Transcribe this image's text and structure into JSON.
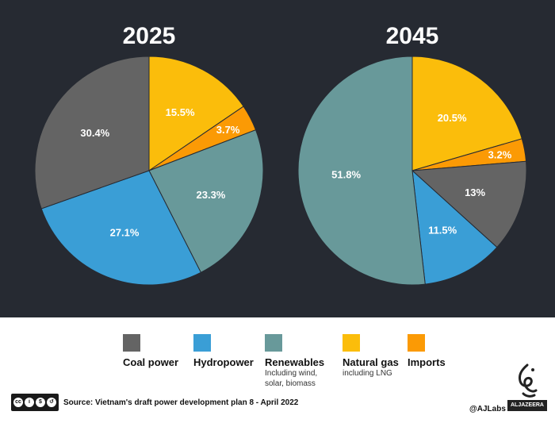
{
  "chart_data": [
    {
      "type": "pie",
      "title": "2025",
      "slices": [
        {
          "category": "Natural gas",
          "value": 15.5,
          "label": "15.5%"
        },
        {
          "category": "Imports",
          "value": 3.7,
          "label": "3.7%"
        },
        {
          "category": "Renewables",
          "value": 23.3,
          "label": "23.3%"
        },
        {
          "category": "Hydropower",
          "value": 27.1,
          "label": "27.1%"
        },
        {
          "category": "Coal power",
          "value": 30.4,
          "label": "30.4%"
        }
      ]
    },
    {
      "type": "pie",
      "title": "2045",
      "slices": [
        {
          "category": "Natural gas",
          "value": 20.5,
          "label": "20.5%"
        },
        {
          "category": "Imports",
          "value": 3.2,
          "label": "3.2%"
        },
        {
          "category": "Coal power",
          "value": 13,
          "label": "13%"
        },
        {
          "category": "Hydropower",
          "value": 11.5,
          "label": "11.5%"
        },
        {
          "category": "Renewables",
          "value": 51.8,
          "label": "51.8%"
        }
      ]
    }
  ],
  "colors": {
    "Coal power": "#646464",
    "Hydropower": "#3a9ed6",
    "Renewables": "#68999a",
    "Natural gas": "#fbbd0b",
    "Imports": "#fb9a05",
    "panel_background": "#262a32"
  },
  "legend": [
    {
      "label": "Coal power",
      "sublabel": ""
    },
    {
      "label": "Hydropower",
      "sublabel": ""
    },
    {
      "label": "Renewables",
      "sublabel": "Including wind,\nsolar, biomass"
    },
    {
      "label": "Natural gas",
      "sublabel": "including LNG"
    },
    {
      "label": "Imports",
      "sublabel": ""
    }
  ],
  "footer": {
    "license_icon": "creative-commons-by-nc-sa-icon",
    "license_text": "BY NC SA",
    "source": "Source: Vietnam's draft power development plan 8 - April 2022",
    "credit": "@AJLabs",
    "logo_text": "ALJAZEERA"
  }
}
